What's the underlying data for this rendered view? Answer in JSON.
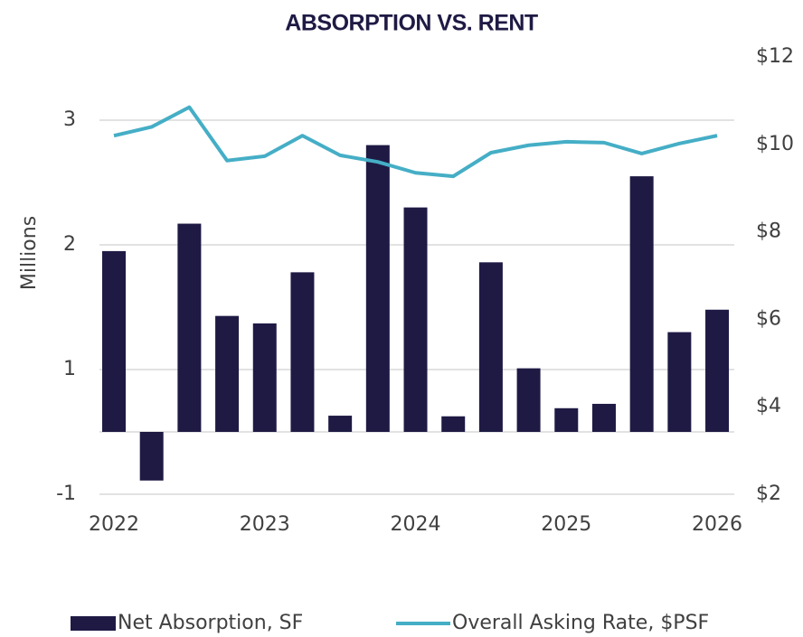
{
  "chart_data": {
    "type": "bar",
    "title": "ABSORPTION VS. RENT",
    "ylabel": "Millions",
    "categories": [
      "2022",
      null,
      null,
      null,
      "2023",
      null,
      null,
      null,
      "2024",
      null,
      null,
      null,
      "2025",
      null,
      null,
      null,
      "2026"
    ],
    "series": [
      {
        "name": "Net Absorption, SF",
        "type": "bar",
        "color": "#1e1a44",
        "values": [
          1.95,
          -0.78,
          2.17,
          1.43,
          1.37,
          1.78,
          0.26,
          2.8,
          2.3,
          0.25,
          1.86,
          1.01,
          0.38,
          0.45,
          2.55,
          1.3,
          1.48
        ]
      },
      {
        "name": "Overall Asking Rate, $PSF",
        "type": "line",
        "axis": "y2",
        "color": "#45aec6",
        "values": [
          10.2,
          10.4,
          10.85,
          9.63,
          9.73,
          10.2,
          9.75,
          9.6,
          9.35,
          9.27,
          9.81,
          9.98,
          10.06,
          10.04,
          9.79,
          10.02,
          10.2
        ]
      }
    ],
    "ylim": [
      -1,
      3.5
    ],
    "yticks": [
      3,
      2,
      1,
      -1
    ],
    "y2lim": [
      2,
      12
    ],
    "y2ticks": [
      {
        "value": 12,
        "label": "$12"
      },
      {
        "value": 10,
        "label": "$10"
      },
      {
        "value": 8,
        "label": "$8"
      },
      {
        "value": 6,
        "label": "$6"
      },
      {
        "value": 4,
        "label": "$4"
      },
      {
        "value": 2,
        "label": "$2"
      }
    ],
    "grid": true,
    "legend": "bottom"
  }
}
